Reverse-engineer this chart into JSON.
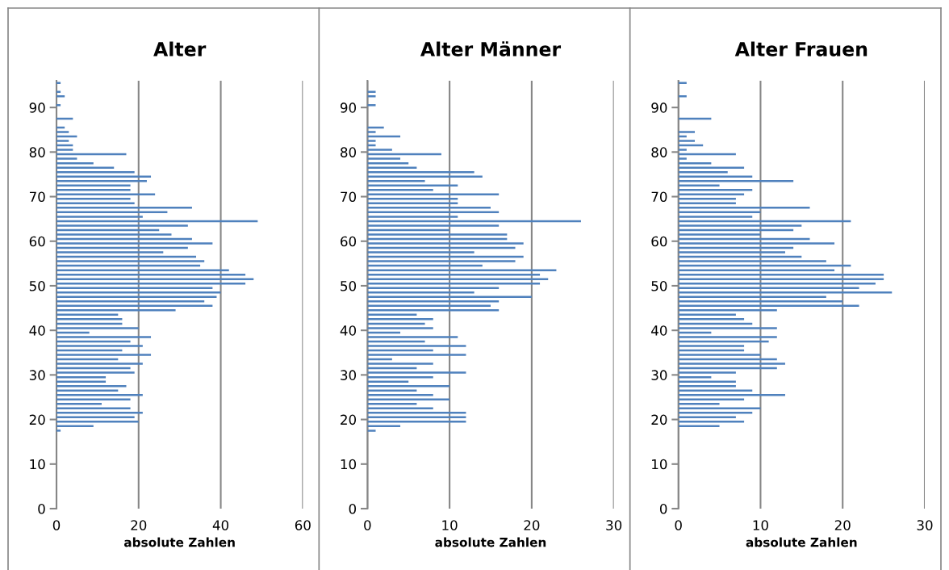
{
  "chart_data": [
    {
      "type": "bar",
      "orientation": "horizontal",
      "title": "Alter",
      "xlabel": "absolute Zahlen",
      "color": "#4f81bd",
      "grid": "x",
      "x": [
        95.5,
        93.5,
        92.5,
        90.5,
        87.5,
        85.5,
        84.5,
        83.5,
        82.5,
        81.5,
        80.5,
        79.5,
        78.5,
        77.5,
        76.5,
        75.5,
        74.5,
        73.5,
        72.5,
        71.5,
        70.5,
        69.5,
        68.5,
        67.5,
        66.5,
        65.5,
        64.5,
        63.5,
        62.5,
        61.5,
        60.5,
        59.5,
        58.5,
        57.5,
        56.5,
        55.5,
        54.5,
        53.5,
        52.5,
        51.5,
        50.5,
        49.5,
        48.5,
        47.5,
        46.5,
        45.5,
        44.5,
        43.5,
        42.5,
        41.5,
        40.5,
        39.5,
        38.5,
        37.5,
        36.5,
        35.5,
        34.5,
        33.5,
        32.5,
        31.5,
        30.5,
        29.5,
        28.5,
        27.5,
        26.5,
        25.5,
        24.5,
        23.5,
        22.5,
        21.5,
        20.5,
        19.5,
        18.5,
        17.5
      ],
      "values": [
        1,
        1,
        2,
        1,
        4,
        2,
        3,
        5,
        3,
        4,
        4,
        17,
        5,
        9,
        14,
        19,
        23,
        22,
        18,
        18,
        24,
        18,
        19,
        33,
        27,
        21,
        49,
        32,
        25,
        28,
        33,
        38,
        32,
        26,
        34,
        36,
        35,
        42,
        46,
        48,
        46,
        38,
        40,
        39,
        36,
        38,
        29,
        15,
        16,
        16,
        20,
        8,
        23,
        18,
        21,
        16,
        23,
        15,
        21,
        18,
        19,
        12,
        12,
        17,
        15,
        21,
        18,
        11,
        18,
        21,
        19,
        20,
        9,
        1
      ],
      "xlim": [
        0,
        60
      ],
      "xticks": [
        0,
        20,
        40,
        60
      ],
      "ylim": [
        0,
        96
      ],
      "yticks": [
        0,
        10,
        20,
        30,
        40,
        50,
        60,
        70,
        80,
        90
      ]
    },
    {
      "type": "bar",
      "orientation": "horizontal",
      "title": "Alter Männer",
      "xlabel": "absolute Zahlen",
      "color": "#4f81bd",
      "grid": "x",
      "x": [
        93.5,
        92.5,
        90.5,
        85.5,
        84.5,
        83.5,
        82.5,
        81.5,
        80.5,
        79.5,
        78.5,
        77.5,
        76.5,
        75.5,
        74.5,
        73.5,
        72.5,
        71.5,
        70.5,
        69.5,
        68.5,
        67.5,
        66.5,
        65.5,
        64.5,
        63.5,
        62.5,
        61.5,
        60.5,
        59.5,
        58.5,
        57.5,
        56.5,
        55.5,
        54.5,
        53.5,
        52.5,
        51.5,
        50.5,
        49.5,
        48.5,
        47.5,
        46.5,
        45.5,
        44.5,
        43.5,
        42.5,
        41.5,
        40.5,
        39.5,
        38.5,
        37.5,
        36.5,
        35.5,
        34.5,
        33.5,
        32.5,
        31.5,
        30.5,
        29.5,
        28.5,
        27.5,
        26.5,
        25.5,
        24.5,
        23.5,
        22.5,
        21.5,
        20.5,
        19.5,
        18.5,
        17.5
      ],
      "values": [
        1,
        1,
        1,
        2,
        1,
        4,
        1,
        1,
        3,
        9,
        4,
        5,
        6,
        13,
        14,
        7,
        11,
        8,
        16,
        11,
        11,
        15,
        16,
        11,
        26,
        16,
        10,
        17,
        17,
        19,
        18,
        13,
        19,
        18,
        14,
        23,
        21,
        22,
        21,
        16,
        13,
        20,
        16,
        15,
        16,
        6,
        8,
        7,
        8,
        4,
        11,
        7,
        12,
        8,
        12,
        3,
        8,
        6,
        12,
        8,
        5,
        10,
        6,
        8,
        10,
        6,
        8,
        12,
        12,
        12,
        4,
        1
      ],
      "xlim": [
        0,
        30
      ],
      "xticks": [
        0,
        10,
        20,
        30
      ],
      "ylim": [
        0,
        96
      ],
      "yticks": [
        0,
        10,
        20,
        30,
        40,
        50,
        60,
        70,
        80,
        90
      ]
    },
    {
      "type": "bar",
      "orientation": "horizontal",
      "title": "Alter Frauen",
      "xlabel": "absolute Zahlen",
      "color": "#4f81bd",
      "grid": "x",
      "x": [
        95.5,
        92.5,
        87.5,
        84.5,
        83.5,
        82.5,
        81.5,
        80.5,
        79.5,
        78.5,
        77.5,
        76.5,
        75.5,
        74.5,
        73.5,
        72.5,
        71.5,
        70.5,
        69.5,
        68.5,
        67.5,
        66.5,
        65.5,
        64.5,
        63.5,
        62.5,
        61.5,
        60.5,
        59.5,
        58.5,
        57.5,
        56.5,
        55.5,
        54.5,
        53.5,
        52.5,
        51.5,
        50.5,
        49.5,
        48.5,
        47.5,
        46.5,
        45.5,
        44.5,
        43.5,
        42.5,
        41.5,
        40.5,
        39.5,
        38.5,
        37.5,
        36.5,
        35.5,
        34.5,
        33.5,
        32.5,
        31.5,
        30.5,
        29.5,
        28.5,
        27.5,
        26.5,
        25.5,
        24.5,
        23.5,
        22.5,
        21.5,
        20.5,
        19.5,
        18.5
      ],
      "values": [
        1,
        1,
        4,
        2,
        1,
        2,
        3,
        1,
        7,
        1,
        4,
        8,
        6,
        9,
        14,
        5,
        9,
        8,
        7,
        7,
        16,
        10,
        9,
        21,
        15,
        14,
        10,
        16,
        19,
        14,
        13,
        15,
        18,
        21,
        19,
        25,
        25,
        24,
        22,
        26,
        18,
        20,
        22,
        12,
        7,
        8,
        9,
        12,
        4,
        12,
        11,
        8,
        8,
        10,
        12,
        13,
        12,
        7,
        4,
        7,
        7,
        9,
        13,
        8,
        5,
        10,
        9,
        7,
        8,
        5
      ],
      "xlim": [
        0,
        30
      ],
      "xticks": [
        0,
        10,
        20,
        30
      ],
      "ylim": [
        0,
        96
      ],
      "yticks": [
        0,
        10,
        20,
        30,
        40,
        50,
        60,
        70,
        80,
        90
      ]
    }
  ]
}
